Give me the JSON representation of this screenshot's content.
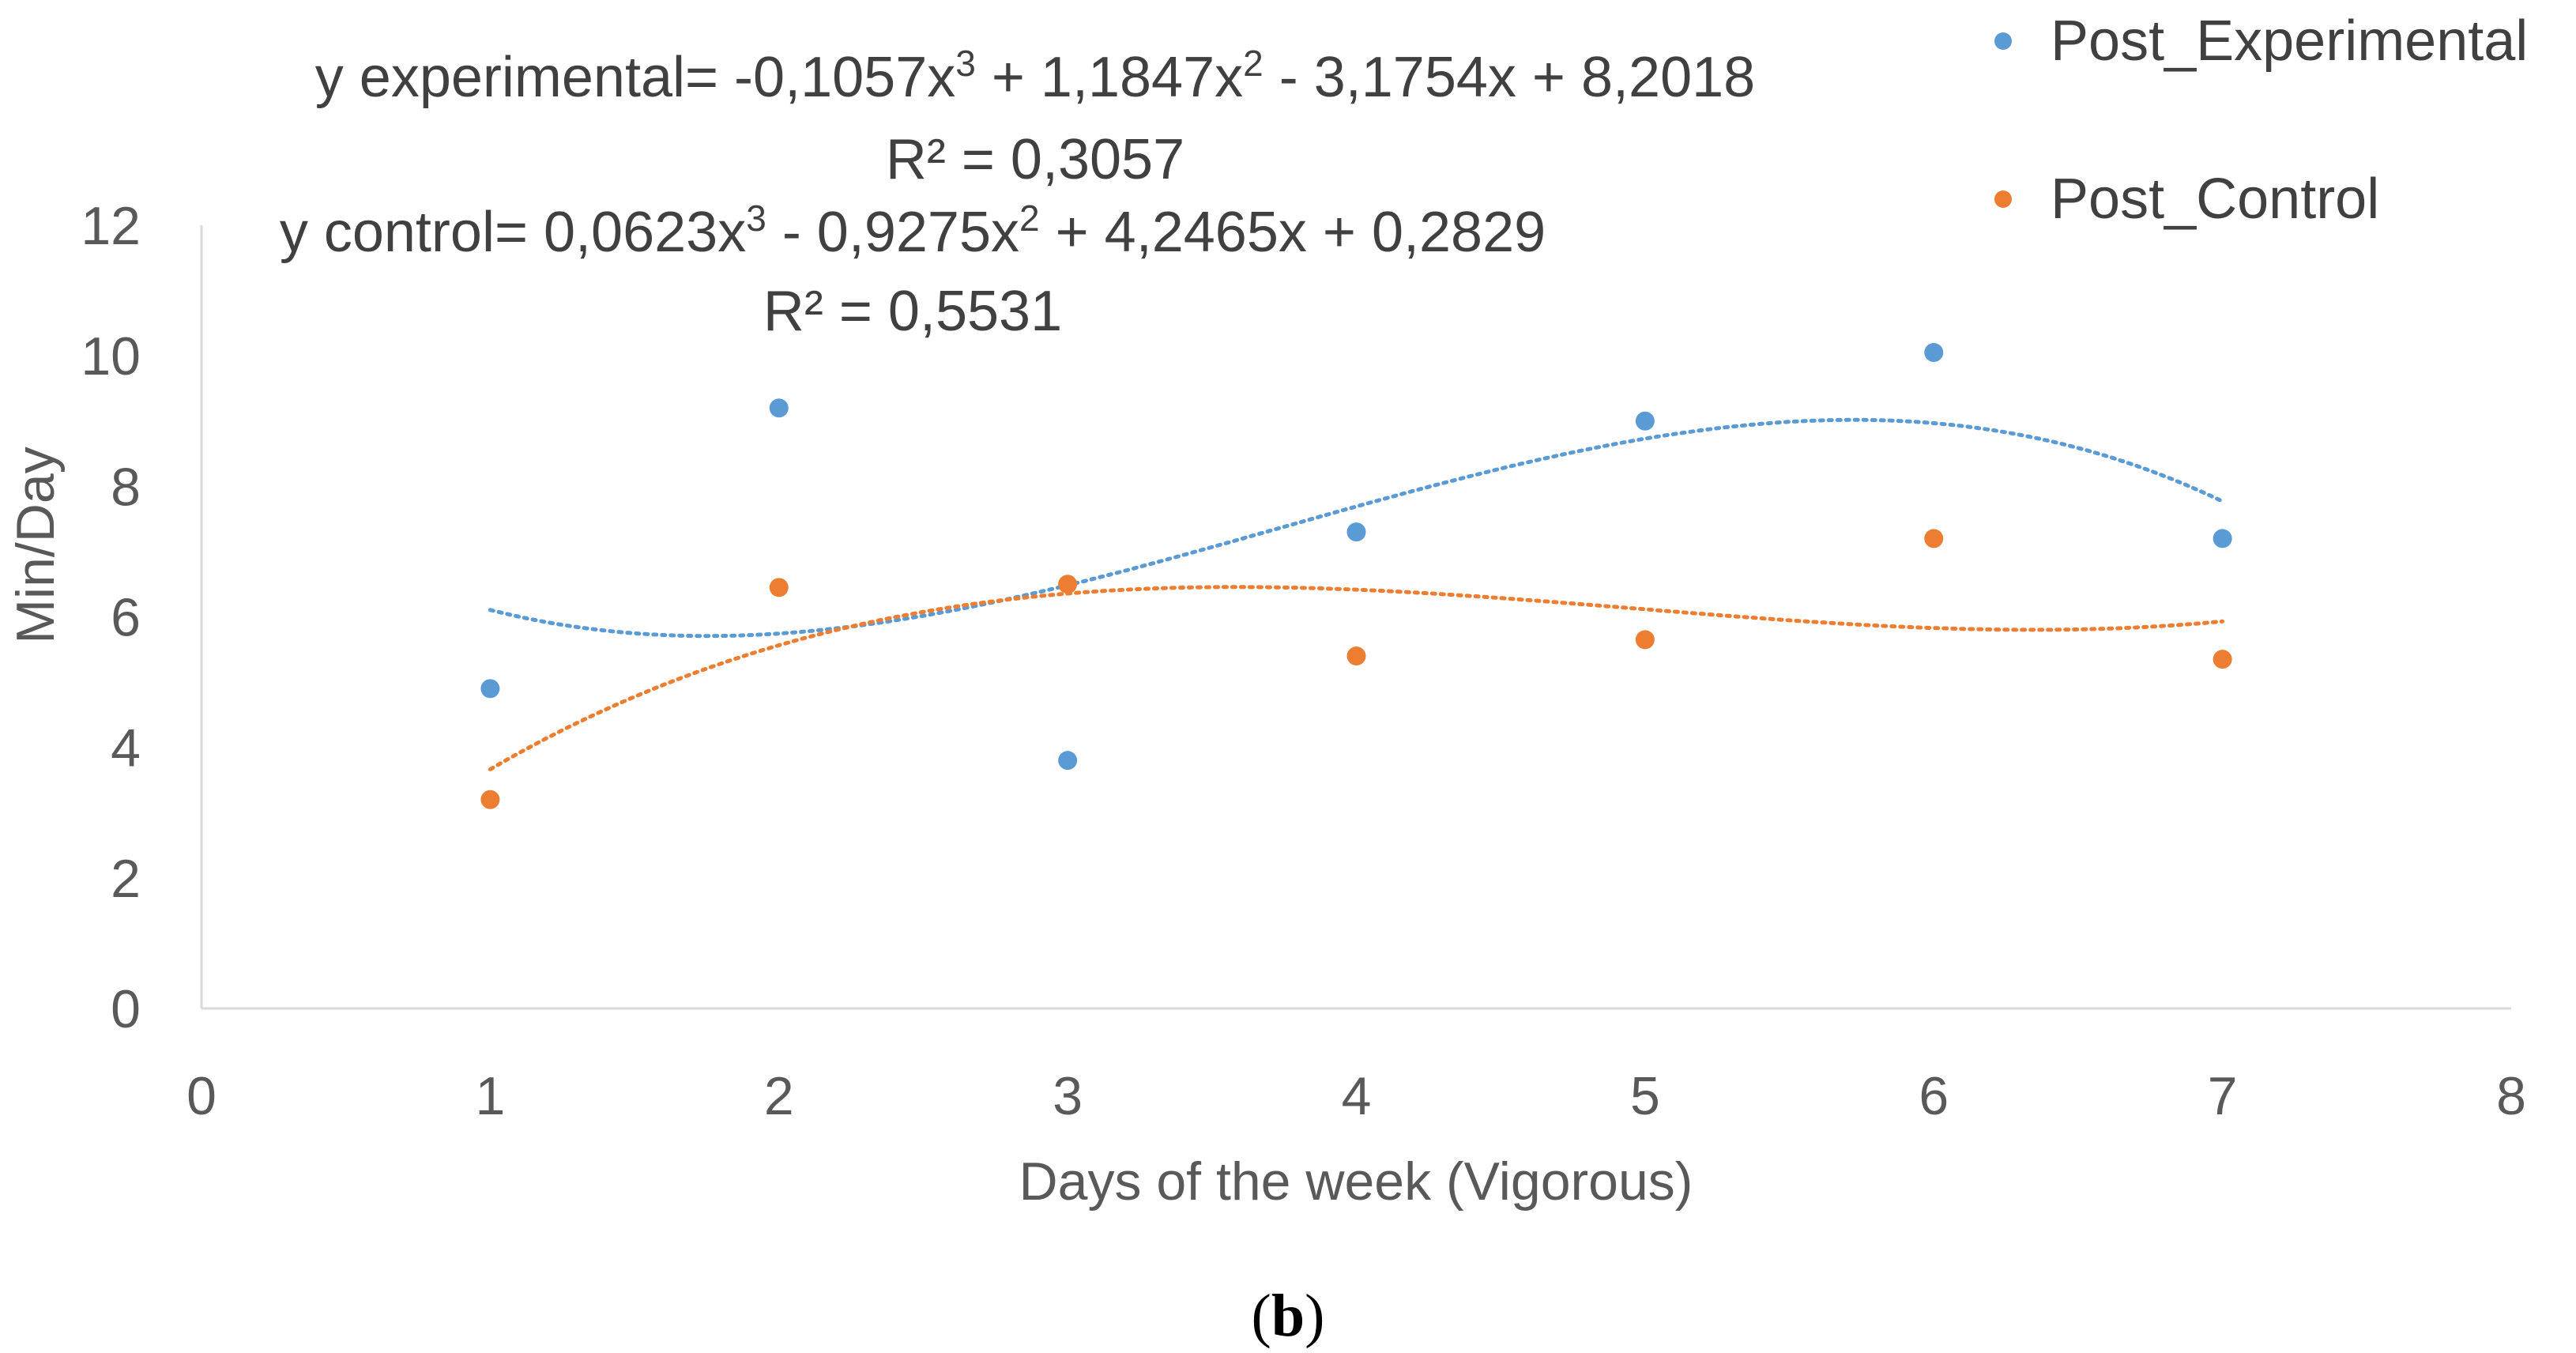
{
  "chart_data": {
    "type": "scatter",
    "xlabel": "Days of the week (Vigorous)",
    "ylabel": "Min/Day",
    "xlim": [
      0,
      8
    ],
    "ylim": [
      0,
      12
    ],
    "x_ticks": [
      "0",
      "1",
      "2",
      "3",
      "4",
      "5",
      "6",
      "7",
      "8"
    ],
    "y_ticks": [
      "0",
      "2",
      "4",
      "6",
      "8",
      "10",
      "12"
    ],
    "grid": false,
    "legend_position": "top-right",
    "series": [
      {
        "name": "Post_Experimental",
        "color": "#5b9bd5",
        "x": [
          1,
          2,
          3,
          4,
          5,
          6,
          7
        ],
        "y": [
          4.9,
          9.2,
          3.8,
          7.3,
          9.0,
          10.05,
          7.2
        ],
        "trendline": {
          "type": "polynomial",
          "degree": 3,
          "coefficients": [
            -0.1057,
            1.1847,
            -3.1754,
            8.2018
          ]
        },
        "equation": {
          "prefix": "y experimental= -0,1057x",
          "e1": "3",
          "mid1": " + 1,1847x",
          "e2": "2",
          "rest": " - 3,1754x + 8,2018"
        },
        "r2_label": "R² = 0,3057"
      },
      {
        "name": "Post_Control",
        "color": "#ed7d31",
        "x": [
          1,
          2,
          3,
          4,
          5,
          6,
          7
        ],
        "y": [
          3.2,
          6.45,
          6.5,
          5.4,
          5.65,
          7.2,
          5.35
        ],
        "trendline": {
          "type": "polynomial",
          "degree": 3,
          "coefficients": [
            0.0623,
            -0.9275,
            4.2465,
            0.2829
          ]
        },
        "equation": {
          "prefix": "y control= 0,0623x",
          "e1": "3",
          "mid1": " - 0,9275x",
          "e2": "2",
          "rest": " + 4,2465x + 0,2829"
        },
        "r2_label": "R² = 0,5531"
      }
    ],
    "caption": {
      "open": "(",
      "letter": "b",
      "close": ")"
    }
  }
}
